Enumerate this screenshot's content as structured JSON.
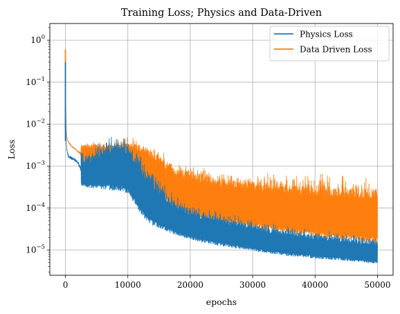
{
  "chart_data": {
    "type": "line",
    "title": "Training Loss; Physics and Data-Driven",
    "xlabel": "epochs",
    "ylabel": "Loss",
    "xlim": [
      -2500,
      52500
    ],
    "ylim": [
      2.5e-06,
      2.5
    ],
    "yscale": "log",
    "grid": true,
    "legend_position": "upper-right",
    "x_ticks": [
      0,
      10000,
      20000,
      30000,
      40000,
      50000
    ],
    "x_tick_labels": [
      "0",
      "10000",
      "20000",
      "30000",
      "40000",
      "50000"
    ],
    "y_ticks": [
      1,
      0.1,
      0.01,
      0.001,
      0.0001,
      1e-05
    ],
    "y_tick_labels": [
      {
        "base": "10",
        "exp": "0"
      },
      {
        "base": "10",
        "exp": "−1"
      },
      {
        "base": "10",
        "exp": "−2"
      },
      {
        "base": "10",
        "exp": "−3"
      },
      {
        "base": "10",
        "exp": "−4"
      },
      {
        "base": "10",
        "exp": "−5"
      }
    ],
    "series": [
      {
        "name": "Physics Loss",
        "color": "#1f77b4",
        "x": [
          0,
          50,
          100,
          200,
          500,
          1000,
          1500,
          2000,
          2500,
          3000,
          4000,
          5000,
          6000,
          7000,
          8000,
          9000,
          10000,
          11000,
          12000,
          13000,
          14000,
          15000,
          16000,
          17000,
          18000,
          20000,
          22000,
          24000,
          26000,
          28000,
          30000,
          32000,
          34000,
          36000,
          38000,
          40000,
          42000,
          44000,
          46000,
          48000,
          50000
        ],
        "upper": [
          0.05,
          0.3,
          0.008,
          0.004,
          0.0028,
          0.0025,
          0.0022,
          0.002,
          0.0018,
          0.0017,
          0.0018,
          0.0025,
          0.0032,
          0.0034,
          0.0038,
          0.0044,
          0.0036,
          0.0022,
          0.0012,
          0.00085,
          0.0006,
          0.0004,
          0.00025,
          0.00018,
          0.00014,
          0.0001,
          8e-05,
          6.8e-05,
          6e-05,
          5.2e-05,
          4.5e-05,
          3.8e-05,
          3.3e-05,
          3e-05,
          2.7e-05,
          2.5e-05,
          2.3e-05,
          2.2e-05,
          2e-05,
          1.8e-05,
          1.7e-05
        ],
        "lower": [
          0.004,
          0.003,
          0.0025,
          0.0015,
          0.001,
          0.00095,
          0.0009,
          0.00075,
          0.00035,
          0.00032,
          0.0003,
          0.00029,
          0.00028,
          0.00027,
          0.00026,
          0.00025,
          0.00022,
          0.00013,
          7.5e-05,
          5e-05,
          3.8e-05,
          3.2e-05,
          2.8e-05,
          2.5e-05,
          2.2e-05,
          1.8e-05,
          1.5e-05,
          1.3e-05,
          1.2e-05,
          1.05e-05,
          9.5e-06,
          8.5e-06,
          7.8e-06,
          7.2e-06,
          6.8e-06,
          6.3e-06,
          6e-06,
          5.7e-06,
          5.4e-06,
          5e-06,
          4.7e-06
        ]
      },
      {
        "name": "Data Driven Loss",
        "color": "#ff7f0e",
        "x": [
          0,
          50,
          100,
          200,
          500,
          1000,
          1500,
          2000,
          2500,
          3000,
          4000,
          5000,
          6000,
          7000,
          8000,
          9000,
          10000,
          11000,
          12000,
          13000,
          14000,
          15000,
          16000,
          17000,
          18000,
          20000,
          22000,
          24000,
          26000,
          28000,
          30000,
          32000,
          34000,
          36000,
          38000,
          40000,
          42000,
          44000,
          46000,
          48000,
          50000
        ],
        "upper": [
          1.4,
          0.6,
          0.015,
          0.006,
          0.0045,
          0.0038,
          0.0032,
          0.0028,
          0.0032,
          0.0035,
          0.0036,
          0.0035,
          0.0034,
          0.0035,
          0.0036,
          0.0038,
          0.004,
          0.0038,
          0.0035,
          0.0032,
          0.0025,
          0.002,
          0.0016,
          0.0013,
          0.0011,
          0.0009,
          0.00075,
          0.00065,
          0.0006,
          0.00056,
          0.00052,
          0.0005,
          0.00047,
          0.00045,
          0.00043,
          0.00042,
          0.0004,
          0.00039,
          0.00038,
          0.00037,
          0.00036
        ],
        "lower": [
          0.008,
          0.006,
          0.005,
          0.004,
          0.003,
          0.0023,
          0.0021,
          0.0018,
          0.0012,
          0.0011,
          0.0011,
          0.00105,
          0.001,
          0.00098,
          0.00095,
          0.0009,
          0.00085,
          0.0007,
          0.00055,
          0.0004,
          0.00028,
          0.0002,
          0.00014,
          0.0001,
          8.5e-05,
          6.8e-05,
          5.5e-05,
          4.5e-05,
          4e-05,
          3.6e-05,
          3.2e-05,
          2.9e-05,
          2.6e-05,
          2.4e-05,
          2.2e-05,
          2e-05,
          1.8e-05,
          1.7e-05,
          1.6e-05,
          1.5e-05,
          1.4e-05
        ]
      }
    ]
  }
}
